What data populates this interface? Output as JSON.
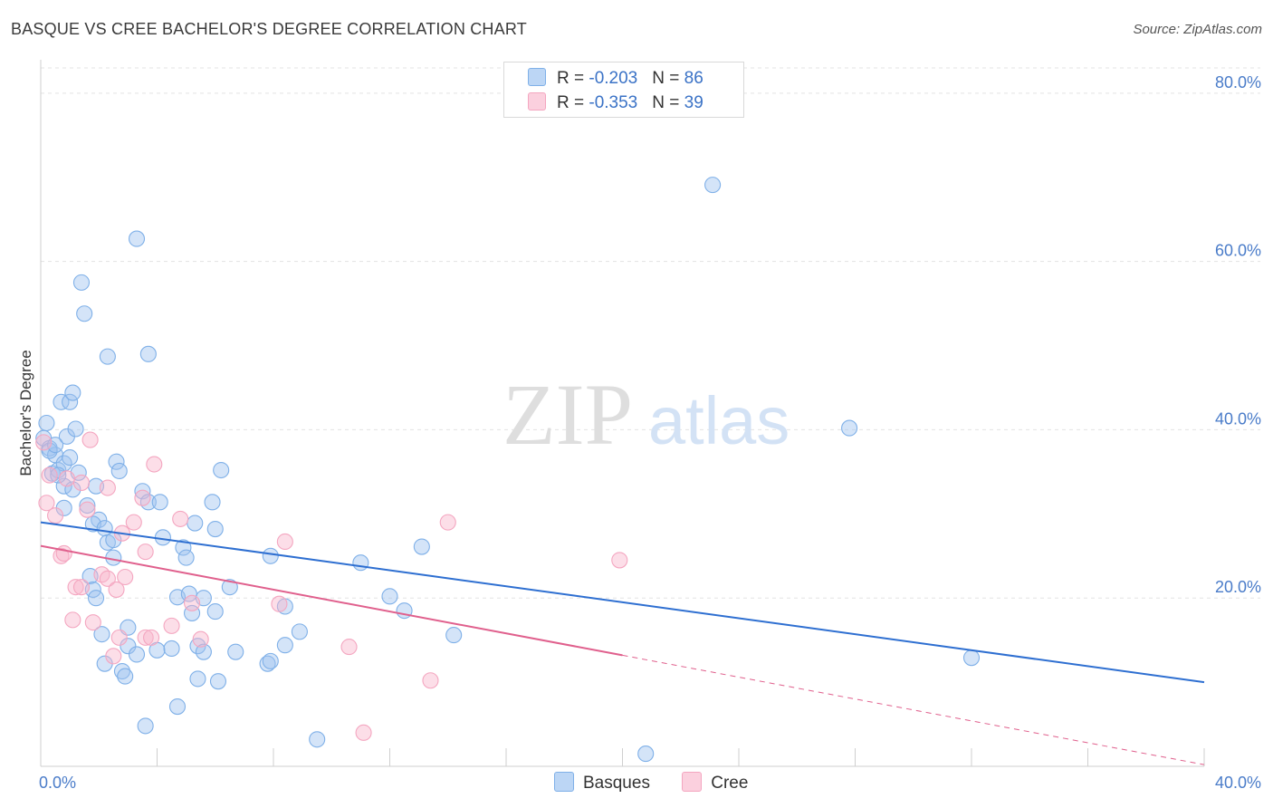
{
  "title": "BASQUE VS CREE BACHELOR'S DEGREE CORRELATION CHART",
  "source": "Source: ZipAtlas.com",
  "watermark": {
    "zip": "ZIP",
    "atlas": "atlas"
  },
  "legend": {
    "rows": [
      {
        "r_label": "R = ",
        "r_value": "-0.203",
        "n_label": "N = ",
        "n_value": "86"
      },
      {
        "r_label": "R = ",
        "r_value": "-0.353",
        "n_label": "N = ",
        "n_value": "39"
      }
    ]
  },
  "chart_data": {
    "type": "scatter",
    "title": "BASQUE VS CREE BACHELOR'S DEGREE CORRELATION CHART",
    "xlabel": "",
    "ylabel": "Bachelor's Degree",
    "xlim": [
      0,
      40
    ],
    "ylim": [
      0,
      83
    ],
    "x_ticks": [
      "0.0%",
      "40.0%"
    ],
    "y_ticks": [
      {
        "value": 20,
        "label": "20.0%"
      },
      {
        "value": 40,
        "label": "40.0%"
      },
      {
        "value": 60,
        "label": "60.0%"
      },
      {
        "value": 80,
        "label": "80.0%"
      }
    ],
    "grid": "horizontal dashed",
    "legend_position": "top-center",
    "series": [
      {
        "name": "Basques",
        "color": "#7fb0e8",
        "line_color": "#2e6fd1",
        "trend": {
          "x0": 0,
          "y0": 29.0,
          "x1": 40,
          "y1": 10.0,
          "solid_to": 40
        },
        "points": [
          [
            0.1,
            39
          ],
          [
            0.2,
            40.8
          ],
          [
            0.3,
            37.8
          ],
          [
            0.5,
            37
          ],
          [
            0.4,
            34.8
          ],
          [
            0.6,
            35.2
          ],
          [
            0.7,
            43.3
          ],
          [
            1.0,
            43.3
          ],
          [
            1.1,
            44.4
          ],
          [
            0.8,
            36.0
          ],
          [
            0.9,
            39.2
          ],
          [
            1.2,
            40.1
          ],
          [
            1.3,
            34.9
          ],
          [
            0.8,
            33.3
          ],
          [
            1.1,
            32.9
          ],
          [
            0.8,
            30.7
          ],
          [
            1.6,
            31.0
          ],
          [
            1.9,
            33.3
          ],
          [
            1.4,
            57.5
          ],
          [
            1.5,
            53.8
          ],
          [
            2.3,
            48.7
          ],
          [
            3.3,
            62.7
          ],
          [
            3.7,
            49.0
          ],
          [
            2.6,
            36.2
          ],
          [
            2.7,
            35.1
          ],
          [
            3.5,
            32.7
          ],
          [
            3.7,
            31.4
          ],
          [
            4.1,
            31.4
          ],
          [
            2.0,
            29.3
          ],
          [
            1.8,
            28.8
          ],
          [
            2.2,
            28.3
          ],
          [
            2.3,
            26.6
          ],
          [
            2.5,
            26.9
          ],
          [
            2.5,
            24.8
          ],
          [
            4.2,
            27.2
          ],
          [
            4.9,
            26.0
          ],
          [
            5.0,
            24.8
          ],
          [
            5.3,
            28.9
          ],
          [
            5.9,
            31.4
          ],
          [
            6.2,
            35.2
          ],
          [
            6.0,
            28.2
          ],
          [
            1.7,
            22.6
          ],
          [
            1.8,
            21.0
          ],
          [
            1.9,
            20.0
          ],
          [
            4.7,
            20.1
          ],
          [
            5.1,
            20.5
          ],
          [
            5.6,
            20.0
          ],
          [
            6.5,
            21.3
          ],
          [
            5.2,
            18.2
          ],
          [
            6.0,
            18.4
          ],
          [
            2.1,
            15.7
          ],
          [
            3.0,
            16.5
          ],
          [
            3.0,
            14.3
          ],
          [
            2.2,
            12.2
          ],
          [
            2.8,
            11.3
          ],
          [
            2.9,
            10.7
          ],
          [
            3.3,
            13.3
          ],
          [
            4.0,
            13.8
          ],
          [
            4.5,
            14.0
          ],
          [
            5.4,
            14.3
          ],
          [
            5.6,
            13.6
          ],
          [
            6.7,
            13.6
          ],
          [
            5.4,
            10.4
          ],
          [
            6.1,
            10.1
          ],
          [
            4.7,
            7.1
          ],
          [
            3.6,
            4.8
          ],
          [
            7.8,
            12.2
          ],
          [
            7.9,
            12.5
          ],
          [
            8.4,
            14.4
          ],
          [
            8.9,
            16.0
          ],
          [
            7.9,
            25.0
          ],
          [
            8.4,
            19.0
          ],
          [
            9.5,
            3.2
          ],
          [
            11.0,
            24.2
          ],
          [
            12.0,
            20.2
          ],
          [
            12.5,
            18.5
          ],
          [
            13.1,
            26.1
          ],
          [
            14.2,
            15.6
          ],
          [
            23.1,
            69.1
          ],
          [
            27.8,
            40.2
          ],
          [
            32.0,
            12.9
          ],
          [
            20.8,
            1.5
          ],
          [
            0.3,
            37.5
          ],
          [
            0.6,
            34.6
          ],
          [
            1.0,
            36.7
          ],
          [
            0.5,
            38.2
          ]
        ]
      },
      {
        "name": "Cree",
        "color": "#f4a6c0",
        "line_color": "#e0608d",
        "trend": {
          "x0": 0,
          "y0": 26.2,
          "x1": 40,
          "y1": 0.2,
          "solid_to": 20.0
        },
        "points": [
          [
            0.1,
            38.5
          ],
          [
            0.3,
            34.6
          ],
          [
            0.5,
            29.8
          ],
          [
            0.2,
            31.3
          ],
          [
            0.7,
            25.0
          ],
          [
            0.8,
            25.3
          ],
          [
            1.4,
            33.7
          ],
          [
            1.6,
            30.5
          ],
          [
            1.7,
            38.8
          ],
          [
            2.3,
            33.1
          ],
          [
            2.8,
            27.7
          ],
          [
            3.2,
            29.0
          ],
          [
            3.5,
            31.9
          ],
          [
            3.9,
            35.9
          ],
          [
            1.2,
            21.3
          ],
          [
            1.4,
            21.3
          ],
          [
            2.1,
            22.8
          ],
          [
            2.3,
            22.3
          ],
          [
            2.6,
            21.0
          ],
          [
            2.9,
            22.5
          ],
          [
            3.6,
            25.5
          ],
          [
            4.8,
            29.4
          ],
          [
            5.2,
            19.4
          ],
          [
            1.1,
            17.4
          ],
          [
            1.8,
            17.1
          ],
          [
            2.5,
            13.1
          ],
          [
            2.7,
            15.3
          ],
          [
            3.6,
            15.3
          ],
          [
            3.8,
            15.3
          ],
          [
            4.5,
            16.7
          ],
          [
            5.5,
            15.1
          ],
          [
            8.2,
            19.3
          ],
          [
            8.4,
            26.7
          ],
          [
            10.6,
            14.2
          ],
          [
            11.1,
            4.0
          ],
          [
            13.4,
            10.2
          ],
          [
            14.0,
            29.0
          ],
          [
            19.9,
            24.5
          ],
          [
            0.9,
            34.2
          ]
        ]
      }
    ]
  },
  "bottom_legend": [
    "Basques",
    "Cree"
  ]
}
